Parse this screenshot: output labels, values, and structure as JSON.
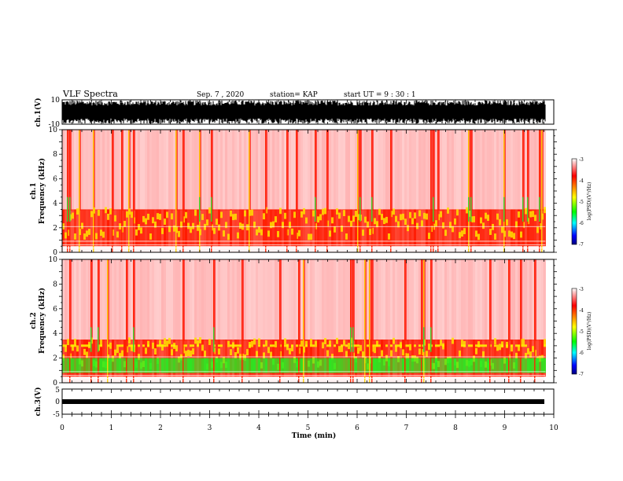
{
  "header": {
    "title": "VLF Spectra",
    "date": "Sep. 7 , 2020",
    "station": "station= KAP",
    "start": "start UT =  9 : 30 : 1"
  },
  "chart_data": [
    {
      "type": "line",
      "panel": "ch1-waveform",
      "ylabel": "ch.1(V)",
      "ylim": [
        -10,
        10
      ],
      "yticks": [
        "10",
        "-10"
      ]
    },
    {
      "type": "heatmap",
      "panel": "ch1-spectrogram",
      "ylabel_line1": "ch.1",
      "ylabel_line2": "Frequency  (kHz)",
      "ylim": [
        0,
        10
      ],
      "yticks": [
        "0",
        "2",
        "4",
        "6",
        "8",
        "10"
      ],
      "colorbar": {
        "label": "log(PSD)(V²/Hz)",
        "range": [
          -7,
          -3
        ],
        "ticks": [
          "-3",
          "-4",
          "-5",
          "-6",
          "-7"
        ],
        "colors": [
          "#ffffff",
          "#ff0000",
          "#ffff00",
          "#00ff00",
          "#00ffff",
          "#0000ff",
          "#000080"
        ]
      }
    },
    {
      "type": "heatmap",
      "panel": "ch2-spectrogram",
      "ylabel_line1": "ch.2",
      "ylabel_line2": "Frequency  (kHz)",
      "ylim": [
        0,
        10
      ],
      "yticks": [
        "0",
        "2",
        "4",
        "6",
        "8",
        "10"
      ],
      "colorbar": {
        "label": "log(PSD)(V²/Hz)",
        "range": [
          -7,
          -3
        ],
        "ticks": [
          "-3",
          "-4",
          "-5",
          "-6",
          "-7"
        ],
        "colors": [
          "#ffffff",
          "#ff0000",
          "#ffff00",
          "#00ff00",
          "#00ffff",
          "#0000ff",
          "#000080"
        ]
      }
    },
    {
      "type": "line",
      "panel": "ch3-waveform",
      "ylabel": "ch.3(V)",
      "ylim": [
        -5,
        5
      ],
      "yticks": [
        "5",
        "0",
        "-5"
      ]
    }
  ],
  "xaxis": {
    "label": "Time  (min)",
    "range": [
      0,
      10
    ],
    "ticks": [
      "0",
      "1",
      "2",
      "3",
      "4",
      "5",
      "6",
      "7",
      "8",
      "9",
      "10"
    ],
    "data_end": 9.83
  }
}
